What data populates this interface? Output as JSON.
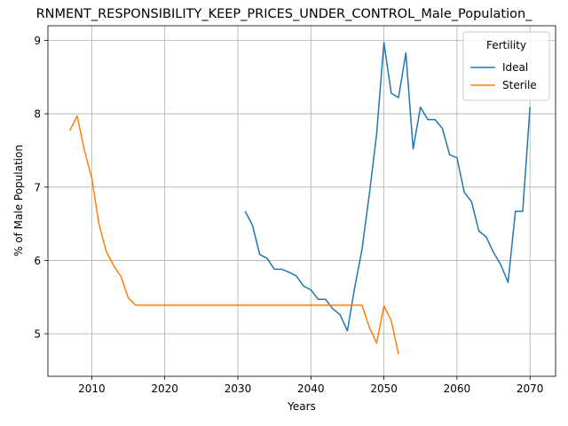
{
  "chart_data": {
    "type": "line",
    "title": "RNMENT_RESPONSIBILITY_KEEP_PRICES_UNDER_CONTROL_Male_Population_",
    "xlabel": "Years",
    "ylabel": "% of Male Population",
    "xlim": [
      2004,
      2073.5
    ],
    "ylim": [
      4.42,
      9.2
    ],
    "xticks": [
      2010,
      2020,
      2030,
      2040,
      2050,
      2060,
      2070
    ],
    "yticks": [
      5,
      6,
      7,
      8,
      9
    ],
    "grid": true,
    "legend": {
      "title": "Fertility",
      "placement": "top-right"
    },
    "series": [
      {
        "name": "Ideal",
        "color": "#1f77b4",
        "x": [
          2031,
          2032,
          2033,
          2034,
          2035,
          2036,
          2037,
          2038,
          2039,
          2040,
          2041,
          2042,
          2043,
          2044,
          2045,
          2046,
          2047,
          2048,
          2049,
          2050,
          2051,
          2052,
          2053,
          2054,
          2055,
          2056,
          2057,
          2058,
          2059,
          2060,
          2061,
          2062,
          2063,
          2064,
          2065,
          2066,
          2067,
          2068,
          2069,
          2070
        ],
        "y": [
          6.67,
          6.48,
          6.08,
          6.03,
          5.88,
          5.88,
          5.84,
          5.79,
          5.65,
          5.6,
          5.47,
          5.47,
          5.34,
          5.26,
          5.04,
          5.63,
          6.15,
          6.9,
          7.72,
          8.97,
          8.28,
          8.22,
          8.83,
          7.52,
          8.09,
          7.92,
          7.92,
          7.8,
          7.44,
          7.4,
          6.93,
          6.8,
          6.4,
          6.32,
          6.11,
          5.94,
          5.7,
          6.67,
          6.67,
          8.09
        ]
      },
      {
        "name": "Sterile",
        "color": "#ff7f0e",
        "x": [
          2007,
          2008,
          2009,
          2010,
          2011,
          2012,
          2013,
          2014,
          2015,
          2016,
          2017,
          2018,
          2019,
          2020,
          2021,
          2022,
          2023,
          2024,
          2025,
          2026,
          2027,
          2028,
          2029,
          2030,
          2031,
          2032,
          2033,
          2034,
          2035,
          2036,
          2037,
          2038,
          2039,
          2040,
          2041,
          2042,
          2043,
          2044,
          2045,
          2046,
          2047,
          2048,
          2049,
          2050,
          2051,
          2052
        ],
        "y": [
          7.77,
          7.97,
          7.5,
          7.12,
          6.49,
          6.12,
          5.93,
          5.78,
          5.49,
          5.39,
          5.39,
          5.39,
          5.39,
          5.39,
          5.39,
          5.39,
          5.39,
          5.39,
          5.39,
          5.39,
          5.39,
          5.39,
          5.39,
          5.39,
          5.39,
          5.39,
          5.39,
          5.39,
          5.39,
          5.39,
          5.39,
          5.39,
          5.39,
          5.39,
          5.39,
          5.39,
          5.39,
          5.39,
          5.39,
          5.39,
          5.39,
          5.09,
          4.87,
          5.38,
          5.18,
          4.72
        ]
      }
    ]
  }
}
